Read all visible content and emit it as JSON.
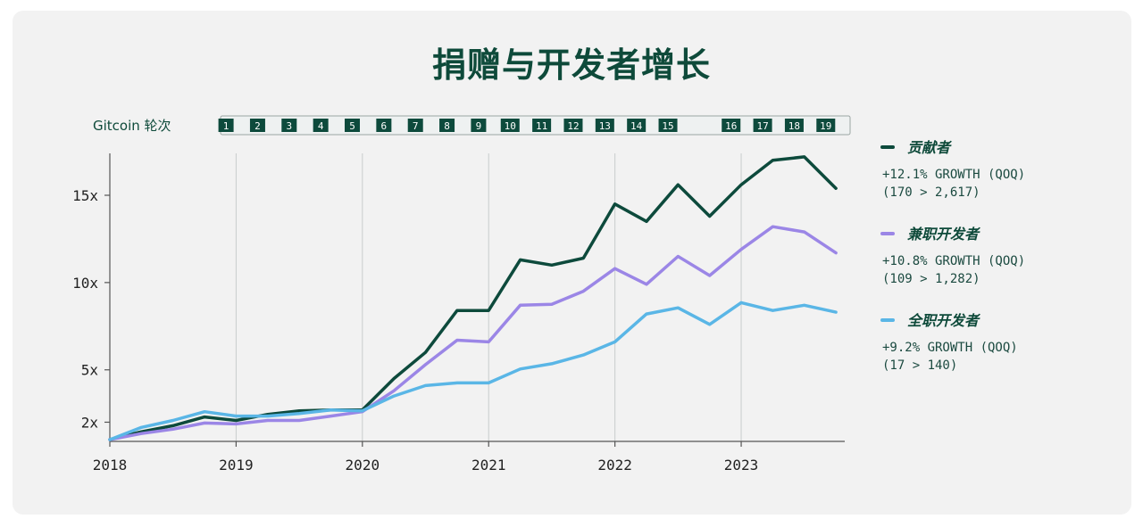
{
  "chart_data": {
    "type": "line",
    "title": "捐赠与开发者增长",
    "rounds_label": "Gitcoin 轮次",
    "rounds": [
      "1",
      "2",
      "3",
      "4",
      "5",
      "6",
      "7",
      "8",
      "9",
      "10",
      "11",
      "12",
      "13",
      "14",
      "15",
      "16",
      "17",
      "18",
      "19"
    ],
    "round_positions": [
      2018.92,
      2019.17,
      2019.42,
      2019.67,
      2019.92,
      2020.17,
      2020.42,
      2020.67,
      2020.92,
      2021.17,
      2021.42,
      2021.67,
      2021.92,
      2022.17,
      2022.42,
      2022.92,
      2023.17,
      2023.42,
      2023.67
    ],
    "x_ticks": [
      2018,
      2019,
      2020,
      2021,
      2022,
      2023
    ],
    "x_range": [
      2018,
      2023.82
    ],
    "y_ticks": [
      {
        "value": 2,
        "label": "2x"
      },
      {
        "value": 5,
        "label": "5x"
      },
      {
        "value": 10,
        "label": "10x"
      },
      {
        "value": 15,
        "label": "15x"
      }
    ],
    "y_range": [
      0.9,
      17.4
    ],
    "x": [
      2018,
      2018.25,
      2018.5,
      2018.75,
      2019,
      2019.25,
      2019.5,
      2019.75,
      2020,
      2020.25,
      2020.5,
      2020.75,
      2021,
      2021.25,
      2021.5,
      2021.75,
      2022,
      2022.25,
      2022.5,
      2022.75,
      2023,
      2023.25,
      2023.5,
      2023.75
    ],
    "series": [
      {
        "name": "贡献者",
        "color": "#0d4a3c",
        "growth": "+12.1% GROWTH (QOQ)",
        "range": "(170 > 2,617)",
        "values": [
          1.0,
          1.45,
          1.8,
          2.3,
          2.1,
          2.45,
          2.65,
          2.7,
          2.7,
          4.5,
          6.0,
          8.4,
          8.4,
          11.3,
          11.0,
          11.4,
          14.5,
          13.5,
          15.6,
          13.8,
          15.6,
          17.0,
          17.2,
          15.4
        ]
      },
      {
        "name": "兼职开发者",
        "color": "#9b86e6",
        "growth": "+10.8% GROWTH (QOQ)",
        "range": "(109 > 1,282)",
        "values": [
          1.0,
          1.35,
          1.6,
          1.95,
          1.9,
          2.1,
          2.1,
          2.35,
          2.6,
          3.8,
          5.3,
          6.7,
          6.6,
          8.7,
          8.75,
          9.5,
          10.8,
          9.9,
          11.5,
          10.4,
          11.9,
          13.2,
          12.9,
          11.7
        ]
      },
      {
        "name": "全职开发者",
        "color": "#5ab6e6",
        "growth": "+9.2% GROWTH (QOQ)",
        "range": "(17 > 140)",
        "values": [
          1.0,
          1.7,
          2.1,
          2.6,
          2.35,
          2.35,
          2.5,
          2.7,
          2.65,
          3.5,
          4.1,
          4.25,
          4.25,
          5.05,
          5.35,
          5.85,
          6.6,
          8.2,
          8.55,
          7.6,
          8.85,
          8.4,
          8.7,
          8.3
        ]
      }
    ]
  }
}
